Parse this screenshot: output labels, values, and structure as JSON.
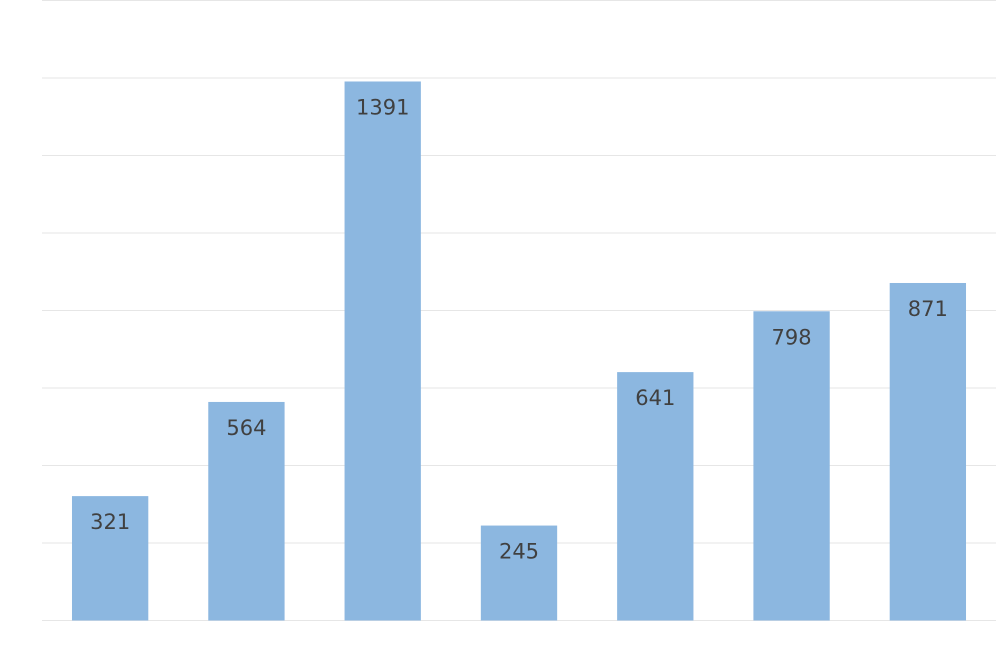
{
  "chart_data": {
    "type": "bar",
    "categories": [
      null,
      null,
      null,
      null,
      null,
      null,
      null
    ],
    "values": [
      321,
      564,
      1391,
      245,
      641,
      798,
      871
    ],
    "color": "#8cb7e0",
    "ylim": [
      0,
      1600
    ],
    "yticks": [
      0,
      200,
      400,
      600,
      800,
      1000,
      1200,
      1400,
      1600
    ],
    "grid": true,
    "value_labels_position": "inside_end"
  }
}
